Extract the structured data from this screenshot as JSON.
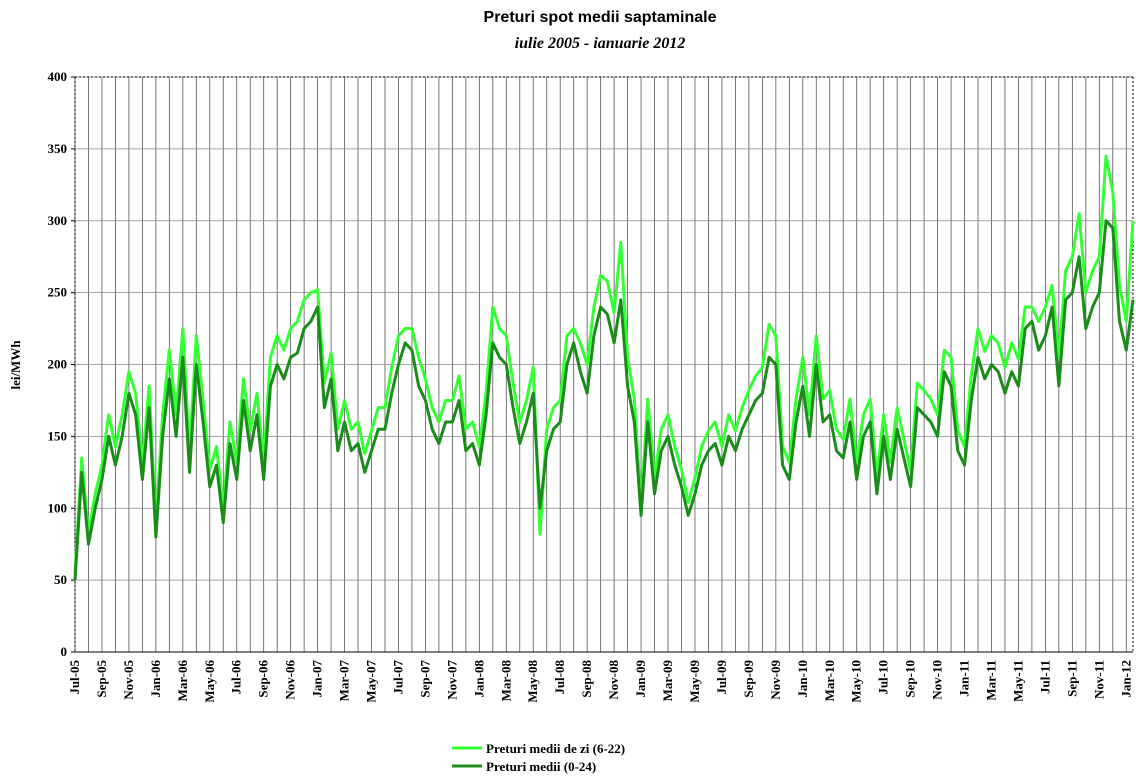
{
  "chart_data": {
    "type": "line",
    "title": "Preturi spot medii saptaminale",
    "subtitle": "iulie 2005 - ianuarie 2012",
    "y_label": "lei/MWh",
    "categories": [
      "Jul-05",
      null,
      null,
      null,
      "Sep-05",
      null,
      null,
      null,
      "Nov-05",
      null,
      null,
      null,
      "Jan-06",
      null,
      null,
      null,
      "Mar-06",
      null,
      null,
      null,
      "May-06",
      null,
      null,
      null,
      "Jul-06",
      null,
      null,
      null,
      "Sep-06",
      null,
      null,
      null,
      "Nov-06",
      null,
      null,
      null,
      "Jan-07",
      null,
      null,
      null,
      "Mar-07",
      null,
      null,
      null,
      "May-07",
      null,
      null,
      null,
      "Jul-07",
      null,
      null,
      null,
      "Sep-07",
      null,
      null,
      null,
      "Nov-07",
      null,
      null,
      null,
      "Jan-08",
      null,
      null,
      null,
      "Mar-08",
      null,
      null,
      null,
      "May-08",
      null,
      null,
      null,
      "Jul-08",
      null,
      null,
      null,
      "Sep-08",
      null,
      null,
      null,
      "Nov-08",
      null,
      null,
      null,
      "Jan-09",
      null,
      null,
      null,
      "Mar-09",
      null,
      null,
      null,
      "May-09",
      null,
      null,
      null,
      "Jul-09",
      null,
      null,
      null,
      "Sep-09",
      null,
      null,
      null,
      "Nov-09",
      null,
      null,
      null,
      "Jan-10",
      null,
      null,
      null,
      "Mar-10",
      null,
      null,
      null,
      "May-10",
      null,
      null,
      null,
      "Jul-10",
      null,
      null,
      null,
      "Sep-10",
      null,
      null,
      null,
      "Nov-10",
      null,
      null,
      null,
      "Jan-11",
      null,
      null,
      null,
      "Mar-11",
      null,
      null,
      null,
      "May-11",
      null,
      null,
      null,
      "Jul-11",
      null,
      null,
      null,
      "Sep-11",
      null,
      null,
      null,
      "Nov-11",
      null,
      null,
      null,
      "Jan-12",
      null
    ],
    "series": [
      {
        "name": "Preturi medii de zi (6-22)",
        "color": "#33ff33",
        "values": [
          55,
          135,
          82,
          110,
          130,
          165,
          143,
          165,
          195,
          180,
          132,
          185,
          88,
          165,
          210,
          165,
          225,
          138,
          220,
          175,
          127,
          143,
          99,
          160,
          132,
          190,
          154,
          180,
          132,
          205,
          220,
          210,
          225,
          230,
          245,
          250,
          252,
          187,
          208,
          155,
          175,
          155,
          160,
          138,
          154,
          170,
          170,
          198,
          220,
          225,
          225,
          205,
          190,
          170,
          160,
          175,
          175,
          192,
          155,
          160,
          143,
          180,
          240,
          225,
          220,
          187,
          160,
          175,
          198,
          82,
          155,
          170,
          175,
          220,
          225,
          215,
          200,
          240,
          262,
          258,
          236,
          285,
          205,
          176,
          100,
          176,
          121,
          155,
          165,
          143,
          127,
          104,
          121,
          143,
          154,
          160,
          143,
          165,
          154,
          170,
          182,
          192,
          198,
          228,
          220,
          143,
          132,
          176,
          205,
          165,
          220,
          176,
          182,
          155,
          148,
          176,
          132,
          165,
          176,
          121,
          165,
          132,
          170,
          148,
          126,
          187,
          182,
          176,
          165,
          210,
          205,
          154,
          143,
          192,
          225,
          209,
          220,
          215,
          198,
          215,
          204,
          240,
          240,
          230,
          240,
          255,
          205,
          265,
          275,
          305,
          250,
          265,
          275,
          345,
          320,
          255,
          230,
          300
        ]
      },
      {
        "name": "Preturi medii (0-24)",
        "color": "#1a8c1a",
        "values": [
          50,
          125,
          75,
          100,
          120,
          150,
          130,
          150,
          180,
          165,
          120,
          170,
          80,
          150,
          190,
          150,
          205,
          125,
          200,
          160,
          115,
          130,
          90,
          145,
          120,
          175,
          140,
          165,
          120,
          185,
          200,
          190,
          205,
          208,
          225,
          230,
          240,
          170,
          190,
          140,
          160,
          140,
          145,
          125,
          140,
          155,
          155,
          180,
          200,
          215,
          210,
          185,
          175,
          155,
          145,
          160,
          160,
          175,
          140,
          145,
          130,
          165,
          215,
          205,
          200,
          170,
          145,
          160,
          180,
          100,
          140,
          155,
          160,
          200,
          215,
          195,
          180,
          220,
          240,
          235,
          215,
          245,
          185,
          160,
          95,
          160,
          110,
          140,
          150,
          130,
          115,
          95,
          110,
          130,
          140,
          145,
          130,
          150,
          140,
          155,
          165,
          175,
          180,
          205,
          200,
          130,
          120,
          160,
          185,
          150,
          200,
          160,
          165,
          140,
          135,
          160,
          120,
          150,
          160,
          110,
          150,
          120,
          155,
          135,
          115,
          170,
          165,
          160,
          150,
          195,
          185,
          140,
          130,
          175,
          205,
          190,
          200,
          195,
          180,
          195,
          185,
          225,
          230,
          210,
          220,
          240,
          185,
          245,
          250,
          275,
          225,
          240,
          250,
          300,
          295,
          230,
          210,
          245
        ]
      }
    ],
    "ylim": [
      0,
      400
    ],
    "yticks": [
      0,
      50,
      100,
      150,
      200,
      250,
      300,
      350,
      400
    ],
    "grid": true,
    "legend": "bottom"
  }
}
